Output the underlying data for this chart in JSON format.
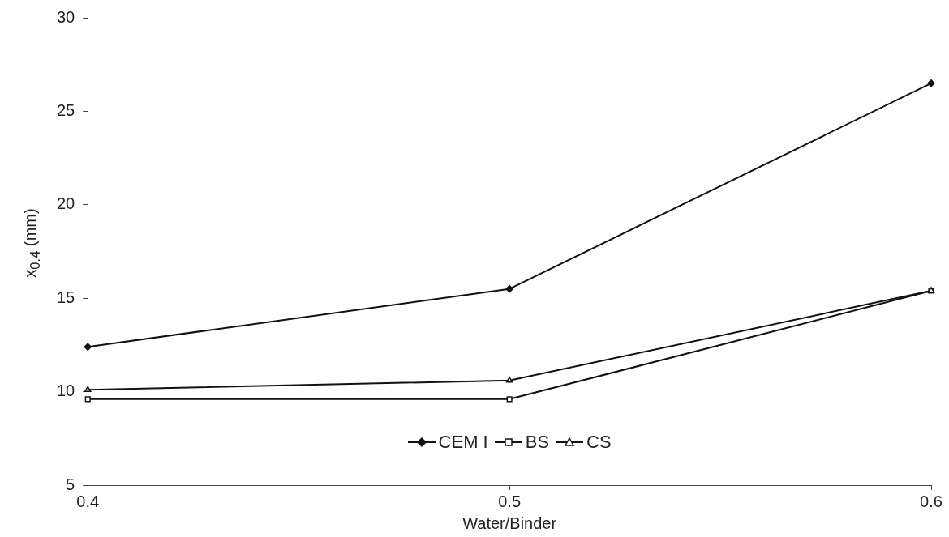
{
  "chart_data": {
    "type": "line",
    "xlabel": "Water/Binder",
    "ylabel": "x$_{0.4}$ (mm)",
    "x": [
      0.4,
      0.5,
      0.6
    ],
    "xlim": [
      0.4,
      0.6
    ],
    "xticks": [
      0.4,
      0.5,
      0.6
    ],
    "ylim": [
      5,
      30
    ],
    "yticks": [
      5,
      10,
      15,
      20,
      25,
      30
    ],
    "grid": false,
    "legend": "bottom",
    "line_style": "solid",
    "series": [
      {
        "name": "CEM I",
        "color": "#111111",
        "marker": "diamond",
        "values": [
          12.4,
          15.5,
          26.5
        ]
      },
      {
        "name": "BS",
        "color": "#111111",
        "marker": "square",
        "values": [
          9.6,
          9.6,
          15.4
        ]
      },
      {
        "name": "CS",
        "color": "#111111",
        "marker": "triangle",
        "values": [
          10.1,
          10.6,
          15.4
        ]
      }
    ]
  }
}
